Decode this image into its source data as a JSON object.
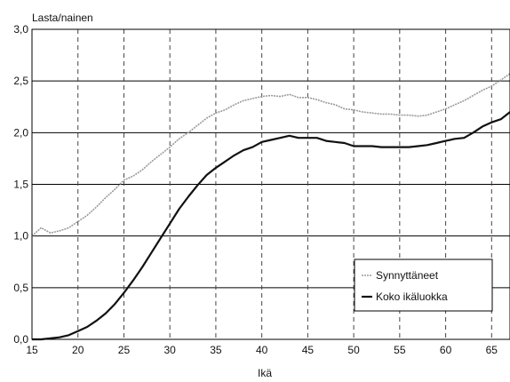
{
  "chart_data": {
    "type": "line",
    "xlabel": "Ikä",
    "ylabel": "Lasta/nainen",
    "xlim": [
      15,
      67
    ],
    "ylim": [
      0,
      3.0
    ],
    "x_ticks": [
      15,
      20,
      25,
      30,
      35,
      40,
      45,
      50,
      55,
      60,
      65
    ],
    "y_ticks": [
      0,
      0.5,
      1.0,
      1.5,
      2.0,
      2.5,
      3.0
    ],
    "y_tick_labels": [
      "0,0",
      "0,5",
      "1,0",
      "1,5",
      "2,0",
      "2,5",
      "3,0"
    ],
    "grid": {
      "horizontal": "solid",
      "vertical": "dashed"
    },
    "legend_position": "bottom-right",
    "series": [
      {
        "name": "Synnyttäneet",
        "color": "#9a9a9a",
        "x": [
          15,
          16,
          17,
          18,
          19,
          20,
          21,
          22,
          23,
          24,
          25,
          26,
          27,
          28,
          29,
          30,
          31,
          32,
          33,
          34,
          35,
          36,
          37,
          38,
          39,
          40,
          41,
          42,
          43,
          44,
          45,
          46,
          47,
          48,
          49,
          50,
          51,
          52,
          53,
          54,
          55,
          56,
          57,
          58,
          59,
          60,
          61,
          62,
          63,
          64,
          65,
          66,
          67
        ],
        "y": [
          1.0,
          1.08,
          1.03,
          1.05,
          1.08,
          1.14,
          1.2,
          1.28,
          1.37,
          1.45,
          1.54,
          1.58,
          1.64,
          1.72,
          1.79,
          1.86,
          1.94,
          2.0,
          2.07,
          2.14,
          2.19,
          2.22,
          2.27,
          2.31,
          2.33,
          2.35,
          2.36,
          2.35,
          2.37,
          2.34,
          2.34,
          2.32,
          2.29,
          2.27,
          2.23,
          2.22,
          2.2,
          2.19,
          2.18,
          2.18,
          2.17,
          2.17,
          2.16,
          2.17,
          2.2,
          2.23,
          2.27,
          2.31,
          2.36,
          2.41,
          2.45,
          2.51,
          2.57
        ]
      },
      {
        "name": "Koko ikäluokka",
        "color": "#111111",
        "x": [
          15,
          16,
          17,
          18,
          19,
          20,
          21,
          22,
          23,
          24,
          25,
          26,
          27,
          28,
          29,
          30,
          31,
          32,
          33,
          34,
          35,
          36,
          37,
          38,
          39,
          40,
          41,
          42,
          43,
          44,
          45,
          46,
          47,
          48,
          49,
          50,
          51,
          52,
          53,
          54,
          55,
          56,
          57,
          58,
          59,
          60,
          61,
          62,
          63,
          64,
          65,
          66,
          67
        ],
        "y": [
          0.0,
          0.0,
          0.01,
          0.02,
          0.04,
          0.08,
          0.12,
          0.18,
          0.25,
          0.34,
          0.45,
          0.57,
          0.7,
          0.84,
          0.98,
          1.12,
          1.26,
          1.38,
          1.49,
          1.59,
          1.66,
          1.72,
          1.78,
          1.83,
          1.86,
          1.91,
          1.93,
          1.95,
          1.97,
          1.95,
          1.95,
          1.95,
          1.92,
          1.91,
          1.9,
          1.87,
          1.87,
          1.87,
          1.86,
          1.86,
          1.86,
          1.86,
          1.87,
          1.88,
          1.9,
          1.92,
          1.94,
          1.95,
          2.0,
          2.06,
          2.1,
          2.13,
          2.2
        ]
      }
    ]
  }
}
